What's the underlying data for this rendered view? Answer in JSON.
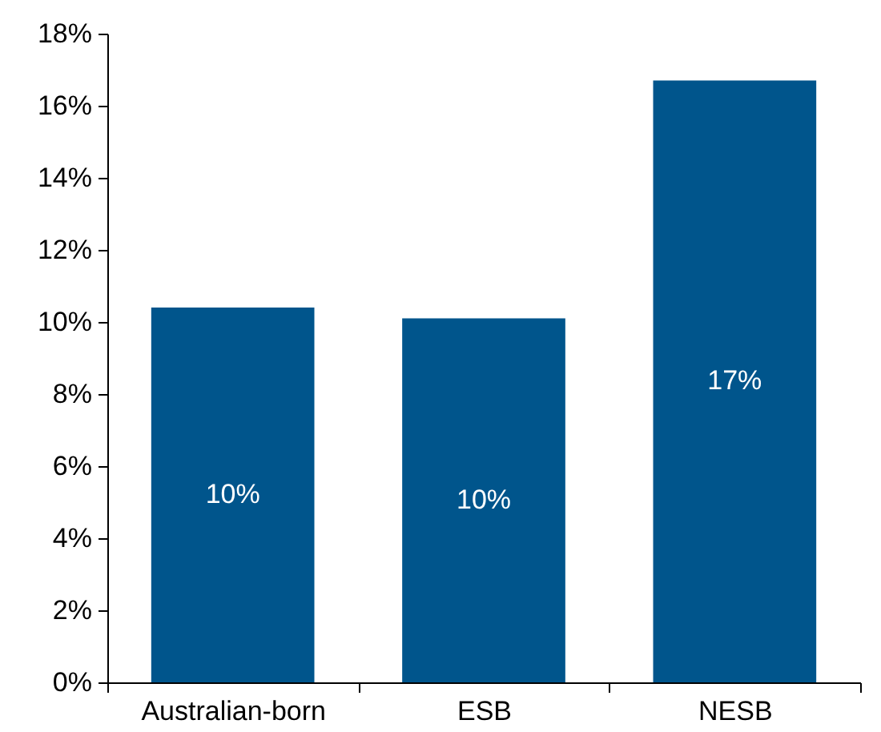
{
  "chart_data": {
    "type": "bar",
    "categories": [
      "Australian-born",
      "ESB",
      "NESB"
    ],
    "values": [
      10.4,
      10.1,
      16.7
    ],
    "color": "#00558c",
    "value_labels": [
      "10%",
      "10%",
      "17%"
    ],
    "ylim": [
      0,
      18
    ],
    "yticks": [
      {
        "value": 0,
        "label": "0%"
      },
      {
        "value": 2,
        "label": "2%"
      },
      {
        "value": 4,
        "label": "4%"
      },
      {
        "value": 6,
        "label": "6%"
      },
      {
        "value": 8,
        "label": "8%"
      },
      {
        "value": 10,
        "label": "10%"
      },
      {
        "value": 12,
        "label": "12%"
      },
      {
        "value": 14,
        "label": "14%"
      },
      {
        "value": 16,
        "label": "16%"
      },
      {
        "value": 18,
        "label": "18%"
      }
    ],
    "grid": false
  }
}
